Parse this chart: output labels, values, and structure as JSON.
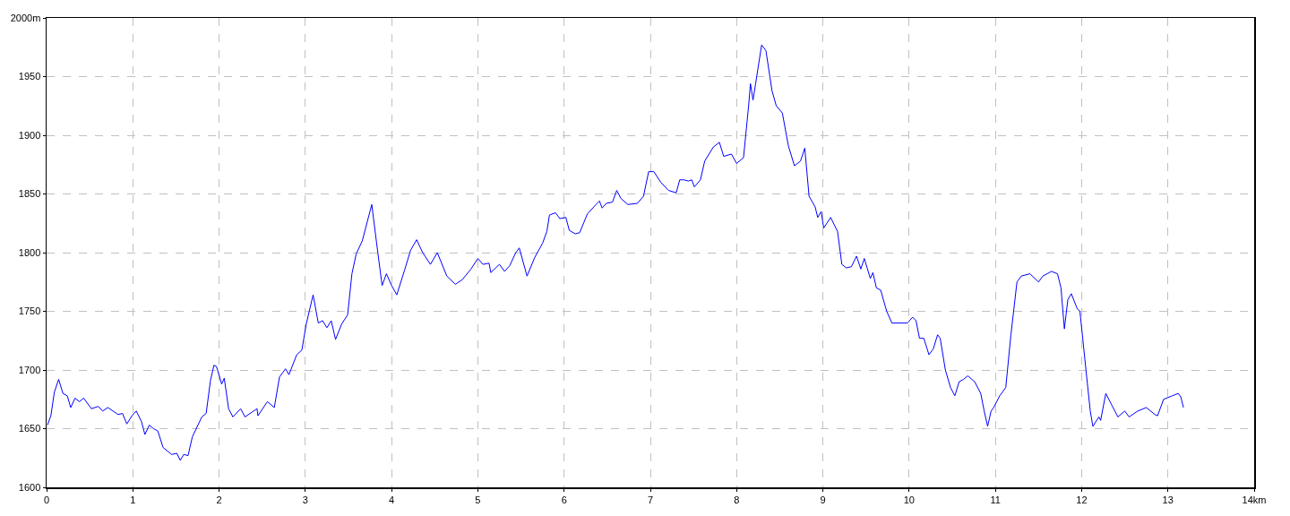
{
  "chart_data": {
    "type": "line",
    "xlim": [
      0,
      14
    ],
    "ylim": [
      1600,
      2000
    ],
    "xticks": [
      0,
      1,
      2,
      3,
      4,
      5,
      6,
      7,
      8,
      9,
      10,
      11,
      12,
      13,
      {
        "value": 14,
        "label": "14km"
      }
    ],
    "yticks": [
      1600,
      1650,
      1700,
      1750,
      1800,
      1850,
      1900,
      1950,
      {
        "value": 2000,
        "label": "2000m"
      }
    ],
    "grid": true,
    "line_style": "solid",
    "series": [
      {
        "color": "#0000ff",
        "x": [
          0.01,
          0.05,
          0.09,
          0.14,
          0.19,
          0.24,
          0.28,
          0.33,
          0.38,
          0.43,
          0.52,
          0.6,
          0.65,
          0.71,
          0.83,
          0.88,
          0.93,
          0.99,
          1.04,
          1.1,
          1.14,
          1.19,
          1.24,
          1.29,
          1.35,
          1.45,
          1.51,
          1.55,
          1.59,
          1.64,
          1.69,
          1.8,
          1.85,
          1.9,
          1.94,
          1.97,
          2.03,
          2.06,
          2.11,
          2.16,
          2.25,
          2.3,
          2.38,
          2.44,
          2.45,
          2.56,
          2.64,
          2.7,
          2.77,
          2.81,
          2.9,
          2.96,
          3.01,
          3.09,
          3.15,
          3.2,
          3.25,
          3.3,
          3.35,
          3.42,
          3.49,
          3.54,
          3.59,
          3.66,
          3.77,
          3.84,
          3.89,
          3.94,
          4.0,
          4.06,
          4.15,
          4.22,
          4.29,
          4.36,
          4.45,
          4.53,
          4.64,
          4.74,
          4.82,
          4.92,
          5.0,
          5.06,
          5.13,
          5.15,
          5.25,
          5.31,
          5.37,
          5.44,
          5.48,
          5.57,
          5.66,
          5.75,
          5.8,
          5.83,
          5.9,
          5.95,
          6.02,
          6.06,
          6.13,
          6.18,
          6.27,
          6.37,
          6.41,
          6.44,
          6.49,
          6.56,
          6.61,
          6.66,
          6.74,
          6.85,
          6.92,
          6.98,
          7.04,
          7.12,
          7.21,
          7.3,
          7.34,
          7.39,
          7.44,
          7.48,
          7.51,
          7.58,
          7.63,
          7.73,
          7.8,
          7.85,
          7.94,
          8.0,
          8.08,
          8.14,
          8.16,
          8.19,
          8.22,
          8.29,
          8.34,
          8.41,
          8.46,
          8.53,
          8.6,
          8.67,
          8.74,
          8.79,
          8.84,
          8.91,
          8.94,
          8.98,
          9.01,
          9.09,
          9.17,
          9.22,
          9.27,
          9.33,
          9.39,
          9.44,
          9.48,
          9.55,
          9.58,
          9.62,
          9.67,
          9.74,
          9.8,
          9.98,
          10.04,
          10.08,
          10.12,
          10.17,
          10.23,
          10.28,
          10.33,
          10.36,
          10.42,
          10.48,
          10.53,
          10.58,
          10.63,
          10.68,
          10.76,
          10.83,
          10.87,
          10.91,
          10.95,
          10.98,
          11.05,
          11.12,
          11.18,
          11.25,
          11.3,
          11.4,
          11.5,
          11.55,
          11.65,
          11.72,
          11.76,
          11.8,
          11.84,
          11.88,
          11.95,
          11.98,
          12.05,
          12.1,
          12.13,
          12.2,
          12.22,
          12.28,
          12.35,
          12.42,
          12.5,
          12.55,
          12.65,
          12.75,
          12.85,
          12.88,
          12.95,
          13.05,
          13.12,
          13.15,
          13.18
        ],
        "values": [
          1653,
          1661,
          1681,
          1692,
          1680,
          1678,
          1668,
          1676,
          1673,
          1676,
          1667,
          1669,
          1665,
          1668,
          1662,
          1663,
          1654,
          1661,
          1665,
          1656,
          1645,
          1653,
          1650,
          1648,
          1634,
          1628,
          1629,
          1623,
          1628,
          1627,
          1643,
          1660,
          1663,
          1691,
          1704,
          1703,
          1688,
          1693,
          1667,
          1660,
          1667,
          1660,
          1664,
          1667,
          1661,
          1673,
          1668,
          1694,
          1701,
          1696,
          1713,
          1717,
          1739,
          1764,
          1740,
          1742,
          1736,
          1742,
          1726,
          1739,
          1747,
          1782,
          1799,
          1810,
          1841,
          1800,
          1772,
          1782,
          1772,
          1764,
          1785,
          1802,
          1811,
          1800,
          1790,
          1800,
          1780,
          1773,
          1777,
          1786,
          1795,
          1790,
          1791,
          1783,
          1790,
          1784,
          1789,
          1800,
          1804,
          1780,
          1796,
          1808,
          1818,
          1832,
          1834,
          1829,
          1830,
          1819,
          1816,
          1817,
          1833,
          1841,
          1844,
          1838,
          1842,
          1843,
          1853,
          1846,
          1841,
          1842,
          1848,
          1869,
          1869,
          1860,
          1853,
          1851,
          1862,
          1862,
          1861,
          1862,
          1856,
          1862,
          1878,
          1890,
          1894,
          1882,
          1884,
          1876,
          1881,
          1926,
          1944,
          1930,
          1944,
          1977,
          1972,
          1938,
          1925,
          1919,
          1891,
          1874,
          1878,
          1889,
          1848,
          1839,
          1830,
          1835,
          1821,
          1830,
          1818,
          1790,
          1787,
          1788,
          1797,
          1786,
          1795,
          1778,
          1783,
          1770,
          1768,
          1750,
          1740,
          1740,
          1745,
          1742,
          1727,
          1727,
          1713,
          1718,
          1730,
          1727,
          1700,
          1685,
          1678,
          1690,
          1692,
          1695,
          1690,
          1680,
          1665,
          1652,
          1665,
          1668,
          1678,
          1685,
          1730,
          1775,
          1780,
          1782,
          1775,
          1780,
          1784,
          1782,
          1770,
          1735,
          1760,
          1765,
          1752,
          1750,
          1700,
          1665,
          1652,
          1660,
          1657,
          1680,
          1670,
          1660,
          1665,
          1660,
          1665,
          1668,
          1662,
          1661,
          1675,
          1678,
          1680,
          1677,
          1668
        ]
      }
    ]
  }
}
